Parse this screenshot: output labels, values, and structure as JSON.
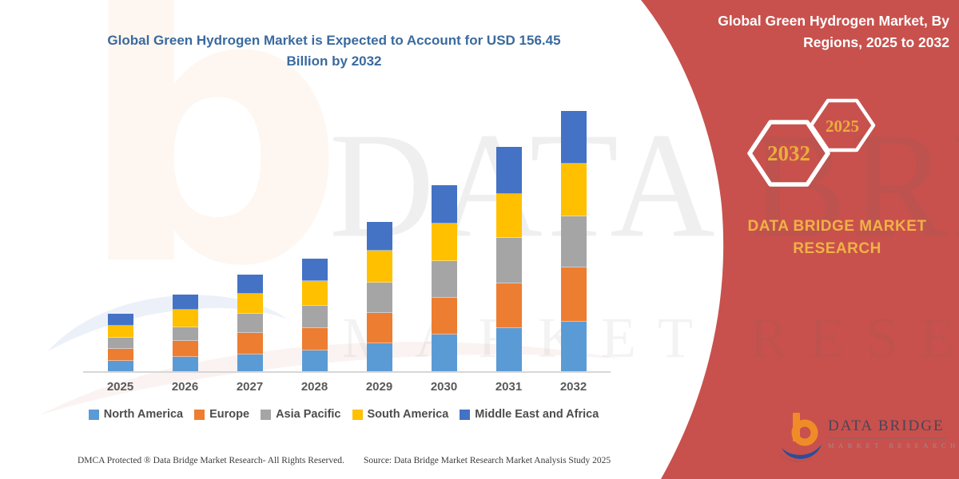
{
  "chart": {
    "title": "Global Green Hydrogen Market is Expected to Account for USD 156.45 Billion by 2032",
    "title_color": "#3a6a9e",
    "axis_label_color": "#595959"
  },
  "chart_data": {
    "type": "bar",
    "stacked": true,
    "unit": "USD Billion",
    "title": "Global Green Hydrogen Market is Expected to Account for USD 156.45 Billion by 2032",
    "xlabel": "",
    "ylabel": "",
    "ylim": [
      0,
      158
    ],
    "grid": false,
    "legend_position": "bottom",
    "categories": [
      "2025",
      "2026",
      "2027",
      "2028",
      "2029",
      "2030",
      "2031",
      "2032"
    ],
    "series": [
      {
        "name": "North America",
        "color": "#5b9bd5",
        "values": [
          6.7,
          9.2,
          10.9,
          12.9,
          17.6,
          22.6,
          26.8,
          30.4
        ]
      },
      {
        "name": "Europe",
        "color": "#ed7d31",
        "values": [
          6.7,
          9.2,
          12.6,
          13.1,
          17.6,
          21.8,
          26.4,
          32.8
        ]
      },
      {
        "name": "Asia Pacific",
        "color": "#a5a5a5",
        "values": [
          6.7,
          8.0,
          10.9,
          13.4,
          18.0,
          22.1,
          27.3,
          30.4
        ]
      },
      {
        "name": "South America",
        "color": "#ffc000",
        "values": [
          6.7,
          9.9,
          11.7,
          14.2,
          18.9,
          22.3,
          26.3,
          31.5
        ]
      },
      {
        "name": "Middle East and Africa",
        "color": "#4472c4",
        "values": [
          6.7,
          8.9,
          10.9,
          13.4,
          17.3,
          22.9,
          27.9,
          31.35
        ]
      }
    ],
    "totals": [
      33.5,
      45.2,
      57.0,
      67.0,
      89.4,
      111.7,
      134.7,
      156.45
    ]
  },
  "side_panel": {
    "background": "#c8514d",
    "heading": "Global Green Hydrogen Market, By Regions, 2025 to 2032",
    "hexagons": [
      {
        "label": "2032"
      },
      {
        "label": "2025"
      }
    ],
    "brand_text": "DATA BRIDGE MARKET RESEARCH",
    "accent_yellow": "#f0b244"
  },
  "footer": {
    "left": "DMCA Protected ® Data Bridge Market Research-  All Rights Reserved.",
    "source": "Source: Data Bridge Market Research  Market Analysis Study 2025"
  },
  "logo": {
    "brand": "DATA BRIDGE",
    "sub": "MARKET RESEARCH"
  },
  "watermark": {
    "letter": "b",
    "line1": "DATA BRIDGE",
    "line2": "MARKET RESEARCH"
  }
}
